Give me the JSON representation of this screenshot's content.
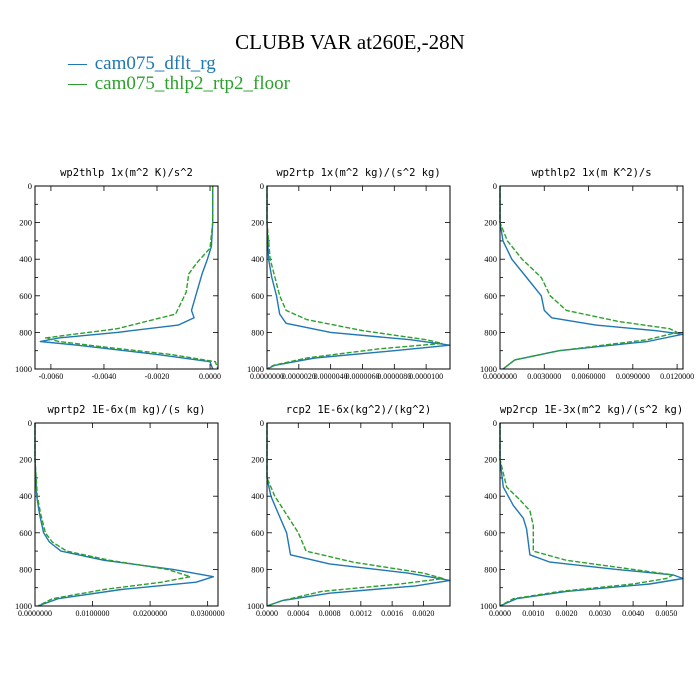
{
  "figure": {
    "title": "CLUBB VAR at260E,-28N",
    "legend": [
      {
        "marker": "—",
        "label": "cam075_dflt_rg",
        "color": "#1f77b4"
      },
      {
        "marker": "—",
        "label": "cam075_thlp2_rtp2_floor",
        "color": "#2ca02c"
      }
    ]
  },
  "chart_data": [
    {
      "type": "line",
      "title": "wp2thlp  1x(m^2 K)/s^2",
      "xlim": [
        -0.0066,
        0.0003
      ],
      "ylim": [
        1000,
        0
      ],
      "yticks": [
        "0",
        "200",
        "400",
        "600",
        "800",
        "1000"
      ],
      "xtick_values": [
        -0.006,
        -0.004,
        -0.002,
        0.0
      ],
      "xtick_labels": [
        "-0.0060",
        "-0.0040",
        "-0.0020",
        "0.0000"
      ],
      "series": [
        {
          "name": "cam075_dflt_rg",
          "color": "#1f77b4",
          "dashed": false,
          "x": [
            0.0001,
            0.0001,
            5e-05,
            -0.0001,
            -0.0003,
            -0.0005,
            -0.0007,
            -0.0006,
            -0.0012,
            -0.0035,
            -0.0057,
            -0.0064,
            -0.005,
            -0.002,
            0.0,
            0.0001
          ],
          "y": [
            0,
            200,
            330,
            400,
            480,
            580,
            680,
            720,
            760,
            800,
            830,
            850,
            870,
            920,
            960,
            1000
          ]
        },
        {
          "name": "cam075_thlp2_rtp2_floor",
          "color": "#2ca02c",
          "dashed": true,
          "x": [
            0.0001,
            0.0001,
            0.0,
            -0.0005,
            -0.0008,
            -0.0009,
            -0.0013,
            -0.0035,
            -0.0062,
            -0.0057,
            -0.004,
            -0.0015,
            0.0002,
            0.0003
          ],
          "y": [
            0,
            200,
            340,
            420,
            480,
            580,
            700,
            780,
            830,
            850,
            880,
            920,
            960,
            1000
          ]
        }
      ]
    },
    {
      "type": "line",
      "title": "wp2rtp  1x(m^2 kg)/(s^2 kg)",
      "xlim": [
        0.0,
        1.15e-05
      ],
      "ylim": [
        1000,
        0
      ],
      "yticks": [
        "0",
        "200",
        "400",
        "600",
        "800",
        "1000"
      ],
      "xtick_values": [
        0.0,
        2e-06,
        4e-06,
        6e-06,
        8e-06,
        1e-05
      ],
      "xtick_labels": [
        "0.0000000",
        "0.0000020",
        "0.0000040",
        "0.0000060",
        "0.0000080",
        "0.0000100"
      ],
      "series": [
        {
          "name": "cam075_dflt_rg",
          "color": "#1f77b4",
          "dashed": false,
          "x": [
            0.0,
            0.0,
            1e-07,
            3e-07,
            6e-07,
            8e-07,
            1.2e-06,
            4e-06,
            9e-06,
            1.15e-05,
            8e-06,
            3e-06,
            5e-07,
            0.0
          ],
          "y": [
            0,
            200,
            400,
            500,
            600,
            700,
            750,
            800,
            840,
            870,
            900,
            940,
            980,
            1000
          ]
        },
        {
          "name": "cam075_thlp2_rtp2_floor",
          "color": "#2ca02c",
          "dashed": true,
          "x": [
            0.0,
            0.0,
            2e-07,
            5e-07,
            8e-07,
            1.2e-06,
            2.5e-06,
            6e-06,
            1e-05,
            1.1e-05,
            7e-06,
            2.5e-06,
            4e-07,
            0.0
          ],
          "y": [
            0,
            200,
            400,
            500,
            600,
            680,
            730,
            790,
            840,
            860,
            890,
            940,
            980,
            1000
          ]
        }
      ]
    },
    {
      "type": "line",
      "title": "wpthlp2  1x(m K^2)/s",
      "xlim": [
        0.0,
        0.0124
      ],
      "ylim": [
        1000,
        0
      ],
      "yticks": [
        "0",
        "200",
        "400",
        "600",
        "800",
        "1000"
      ],
      "xtick_values": [
        0.0,
        0.003,
        0.006,
        0.009,
        0.012
      ],
      "xtick_labels": [
        "0.0000000",
        "0.0030000",
        "0.0060000",
        "0.0090000",
        "0.0120000"
      ],
      "series": [
        {
          "name": "cam075_dflt_rg",
          "color": "#1f77b4",
          "dashed": false,
          "x": [
            0.0,
            0.0,
            0.0002,
            0.0008,
            0.0018,
            0.0028,
            0.003,
            0.0035,
            0.0065,
            0.0105,
            0.0124,
            0.01,
            0.004,
            0.001,
            0.0002
          ],
          "y": [
            0,
            200,
            300,
            400,
            500,
            600,
            680,
            720,
            760,
            790,
            810,
            850,
            900,
            950,
            1000
          ]
        },
        {
          "name": "cam075_thlp2_rtp2_floor",
          "color": "#2ca02c",
          "dashed": true,
          "x": [
            0.0,
            0.0,
            0.0005,
            0.0015,
            0.0028,
            0.0034,
            0.0045,
            0.008,
            0.0115,
            0.012,
            0.01,
            0.004,
            0.001,
            0.0002
          ],
          "y": [
            0,
            200,
            300,
            400,
            500,
            600,
            680,
            740,
            780,
            800,
            840,
            900,
            950,
            1000
          ]
        }
      ]
    },
    {
      "type": "line",
      "title": "wprtp2  1E-6x(m kg)/(s kg)",
      "xlim": [
        0.0,
        0.0318
      ],
      "ylim": [
        1000,
        0
      ],
      "yticks": [
        "0",
        "200",
        "400",
        "600",
        "800",
        "1000"
      ],
      "xtick_values": [
        0.0,
        0.01,
        0.02,
        0.03
      ],
      "xtick_labels": [
        "0.0000000",
        "0.0100000",
        "0.0200000",
        "0.0300000"
      ],
      "series": [
        {
          "name": "cam075_dflt_rg",
          "color": "#1f77b4",
          "dashed": false,
          "x": [
            0.0,
            0.0,
            0.0003,
            0.0008,
            0.0015,
            0.0025,
            0.0045,
            0.012,
            0.024,
            0.031,
            0.028,
            0.015,
            0.004,
            0.0005
          ],
          "y": [
            0,
            200,
            400,
            500,
            600,
            650,
            700,
            750,
            800,
            840,
            870,
            910,
            960,
            1000
          ]
        },
        {
          "name": "cam075_thlp2_rtp2_floor",
          "color": "#2ca02c",
          "dashed": true,
          "x": [
            0.0,
            0.0,
            0.0004,
            0.001,
            0.0018,
            0.003,
            0.0055,
            0.013,
            0.023,
            0.027,
            0.022,
            0.012,
            0.003,
            0.0005
          ],
          "y": [
            0,
            200,
            400,
            500,
            600,
            650,
            700,
            750,
            800,
            840,
            870,
            910,
            960,
            1000
          ]
        }
      ]
    },
    {
      "type": "line",
      "title": "rcp2  1E-6x(kg^2)/(kg^2)",
      "xlim": [
        0.0,
        0.00234
      ],
      "ylim": [
        1000,
        0
      ],
      "yticks": [
        "0",
        "200",
        "400",
        "600",
        "800",
        "1000"
      ],
      "xtick_values": [
        0.0,
        0.0004,
        0.0008,
        0.0012,
        0.0016,
        0.002
      ],
      "xtick_labels": [
        "0.0000",
        "0.0004",
        "0.0008",
        "0.0012",
        "0.0016",
        "0.0020"
      ],
      "series": [
        {
          "name": "cam075_dflt_rg",
          "color": "#1f77b4",
          "dashed": false,
          "x": [
            0.0,
            0.0,
            5e-05,
            0.00015,
            0.00025,
            0.0003,
            0.0008,
            0.0018,
            0.00234,
            0.0019,
            0.0008,
            0.0002,
            0.0
          ],
          "y": [
            0,
            300,
            400,
            500,
            600,
            720,
            770,
            820,
            860,
            890,
            930,
            970,
            1000
          ]
        },
        {
          "name": "cam075_thlp2_rtp2_floor",
          "color": "#2ca02c",
          "dashed": true,
          "x": [
            0.0,
            0.0,
            0.0001,
            0.00025,
            0.0004,
            0.0005,
            0.0011,
            0.002,
            0.00225,
            0.0017,
            0.0007,
            0.0002,
            0.0
          ],
          "y": [
            0,
            300,
            400,
            500,
            600,
            700,
            760,
            820,
            850,
            880,
            920,
            970,
            1000
          ]
        }
      ]
    },
    {
      "type": "line",
      "title": "wp2rcp  1E-3x(m^2 kg)/(s^2 kg)",
      "xlim": [
        0.0,
        0.0055
      ],
      "ylim": [
        1000,
        0
      ],
      "yticks": [
        "0",
        "200",
        "400",
        "600",
        "800",
        "1000"
      ],
      "xtick_values": [
        0.0,
        0.001,
        0.002,
        0.003,
        0.004,
        0.005
      ],
      "xtick_labels": [
        "0.0000",
        "0.0010",
        "0.0020",
        "0.0030",
        "0.0040",
        "0.0050"
      ],
      "series": [
        {
          "name": "cam075_dflt_rg",
          "color": "#1f77b4",
          "dashed": false,
          "x": [
            0.0,
            0.0,
            0.0001,
            0.0004,
            0.0007,
            0.0008,
            0.0009,
            0.0015,
            0.0035,
            0.0052,
            0.0055,
            0.0045,
            0.002,
            0.0005,
            0.0
          ],
          "y": [
            0,
            200,
            350,
            450,
            520,
            580,
            720,
            760,
            800,
            830,
            850,
            880,
            920,
            960,
            1000
          ]
        },
        {
          "name": "cam075_thlp2_rtp2_floor",
          "color": "#2ca02c",
          "dashed": true,
          "x": [
            0.0,
            0.0,
            0.0002,
            0.0006,
            0.0009,
            0.001,
            0.001,
            0.002,
            0.004,
            0.0052,
            0.005,
            0.004,
            0.0018,
            0.0004,
            0.0
          ],
          "y": [
            0,
            200,
            350,
            420,
            480,
            560,
            700,
            750,
            800,
            830,
            850,
            880,
            920,
            960,
            1000
          ]
        }
      ]
    }
  ]
}
